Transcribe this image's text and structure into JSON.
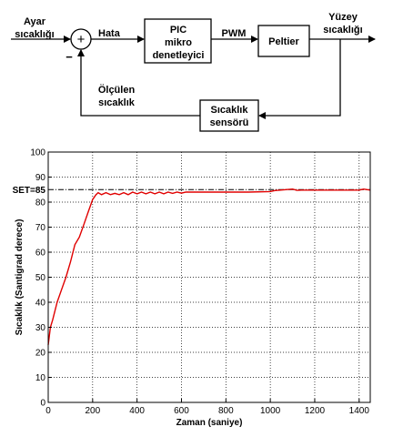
{
  "diagram": {
    "input_label_1": "Ayar",
    "input_label_2": "sıcaklığı",
    "sum_plus": "+",
    "sum_minus": "−",
    "error_label": "Hata",
    "controller_1": "PIC",
    "controller_2": "mikro",
    "controller_3": "denetleyici",
    "pwm_label": "PWM",
    "plant": "Peltier",
    "output_label_1": "Yüzey",
    "output_label_2": "sıcaklığı",
    "feedback_label_1": "Ölçülen",
    "feedback_label_2": "sıcaklık",
    "sensor_1": "Sıcaklık",
    "sensor_2": "sensörü"
  },
  "chart_data": {
    "type": "line",
    "xlabel": "Zaman (saniye)",
    "ylabel": "Sıcaklık (Santigrad derece)",
    "xlim": [
      0,
      1450
    ],
    "ylim": [
      0,
      100
    ],
    "grid": true,
    "x_ticks": [
      0,
      200,
      400,
      600,
      800,
      1000,
      1200,
      1400
    ],
    "y_ticks": [
      0,
      10,
      20,
      30,
      40,
      50,
      60,
      70,
      80,
      90,
      100
    ],
    "setpoint": {
      "label": "SET=85",
      "value": 85
    },
    "series": [
      {
        "color": "#e00000",
        "x": [
          0,
          10,
          20,
          40,
          60,
          80,
          100,
          120,
          140,
          160,
          180,
          200,
          215,
          225,
          240,
          260,
          280,
          300,
          320,
          340,
          360,
          380,
          400,
          420,
          440,
          460,
          480,
          500,
          520,
          540,
          560,
          580,
          600,
          620,
          700,
          800,
          900,
          1000,
          1020,
          1100,
          1120,
          1140,
          1200,
          1300,
          1400,
          1420,
          1450
        ],
        "y": [
          23,
          30,
          33,
          40,
          45,
          50,
          56,
          63,
          66,
          71,
          76,
          81,
          83,
          83.8,
          83,
          83.8,
          83,
          83.5,
          83,
          83.8,
          83,
          84,
          83.3,
          84,
          83.3,
          84,
          83.3,
          84,
          83.3,
          84,
          83.5,
          84,
          83.6,
          84,
          84,
          84,
          84,
          84.2,
          84.6,
          85.2,
          84.7,
          84.8,
          84.8,
          84.8,
          84.8,
          85.2,
          84.8
        ]
      }
    ]
  }
}
